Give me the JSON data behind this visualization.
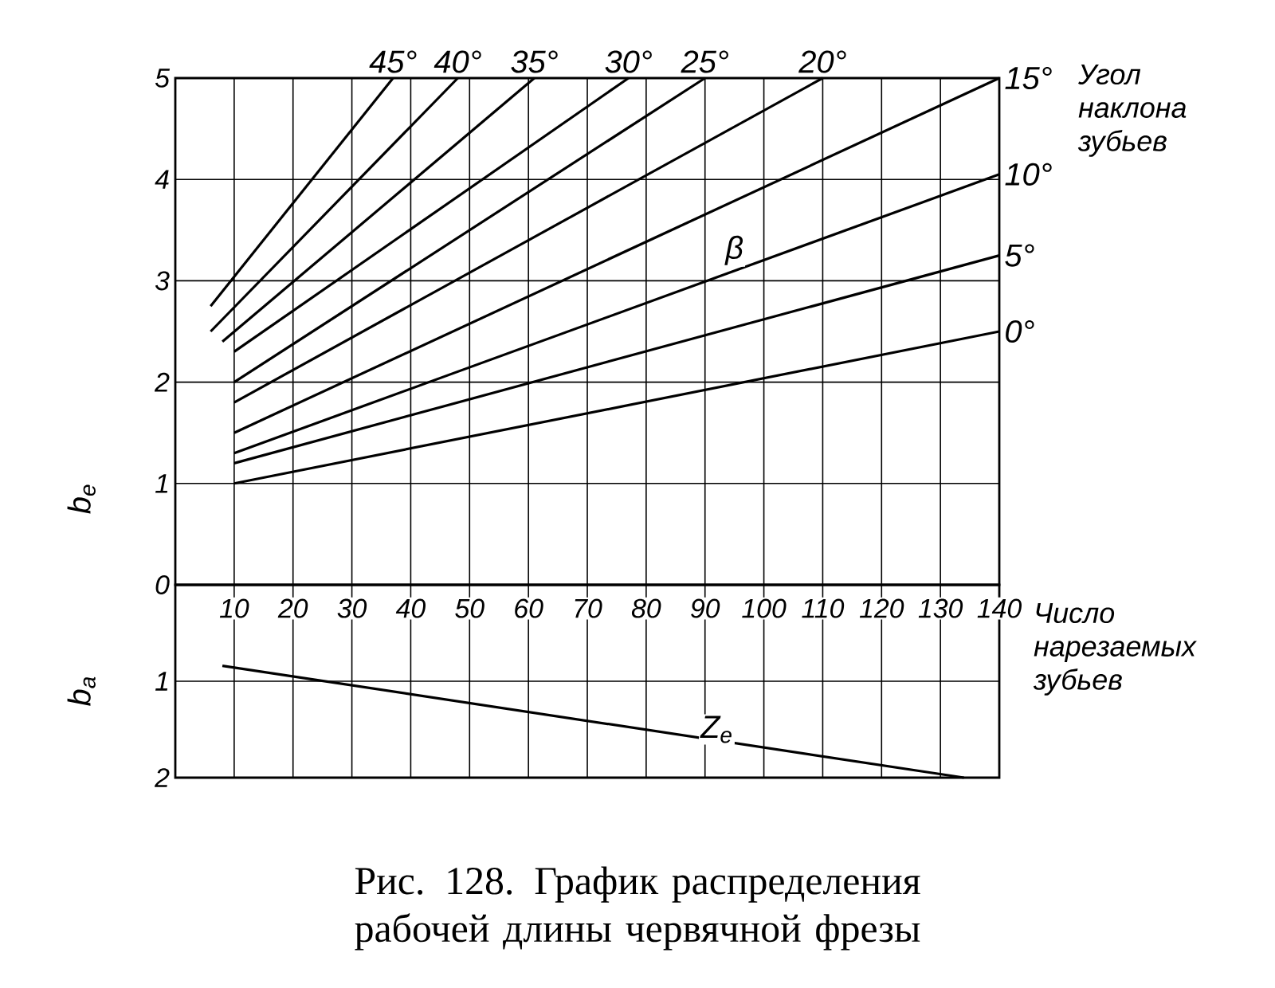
{
  "chart_data": [
    {
      "type": "line",
      "title": "Рис. 128. График распределения рабочей длины червячной фрезы",
      "ylabel": "b$_{e}$",
      "xlim": [
        0,
        140
      ],
      "ylim": [
        0,
        5
      ],
      "xticks": [
        10,
        20,
        30,
        40,
        50,
        60,
        70,
        80,
        90,
        100,
        110,
        120,
        130,
        140
      ],
      "yticks": [
        0,
        1,
        2,
        3,
        4,
        5
      ],
      "grid": true,
      "tick_labels": "y",
      "annotations": [
        "Угол наклона зубьев",
        {
          "text": "β",
          "x": 95,
          "y": 3.3
        }
      ],
      "series": [
        {
          "name": "0°",
          "color": "#000000",
          "x": [
            10,
            140
          ],
          "values": [
            1.0,
            2.5
          ]
        },
        {
          "name": "5°",
          "color": "#000000",
          "x": [
            10,
            140
          ],
          "values": [
            1.2,
            3.25
          ]
        },
        {
          "name": "10°",
          "color": "#000000",
          "x": [
            10,
            140
          ],
          "values": [
            1.3,
            4.05
          ]
        },
        {
          "name": "15°",
          "color": "#000000",
          "x": [
            10,
            140
          ],
          "values": [
            1.5,
            5.0
          ]
        },
        {
          "name": "20°",
          "color": "#000000",
          "x": [
            10,
            110
          ],
          "values": [
            1.8,
            5.0
          ]
        },
        {
          "name": "25°",
          "color": "#000000",
          "x": [
            10,
            90
          ],
          "values": [
            2.0,
            5.0
          ]
        },
        {
          "name": "30°",
          "color": "#000000",
          "x": [
            10,
            77
          ],
          "values": [
            2.3,
            5.0
          ]
        },
        {
          "name": "35°",
          "color": "#000000",
          "x": [
            8,
            61
          ],
          "values": [
            2.4,
            5.0
          ]
        },
        {
          "name": "40°",
          "color": "#000000",
          "x": [
            6,
            48
          ],
          "values": [
            2.5,
            5.0
          ]
        },
        {
          "name": "45°",
          "color": "#000000",
          "x": [
            6,
            37
          ],
          "values": [
            2.75,
            5.0
          ]
        }
      ]
    },
    {
      "type": "line",
      "ylabel": "b$_{a}$",
      "xlabel": "Число нарезаемых зубьев",
      "xlim": [
        0,
        140
      ],
      "ylim": [
        2,
        0
      ],
      "xticks": [
        10,
        20,
        30,
        40,
        50,
        60,
        70,
        80,
        90,
        100,
        110,
        120,
        130,
        140
      ],
      "yticks": [
        {
          "value": 0,
          "label": null
        },
        1,
        2
      ],
      "grid": true,
      "annotations": [
        {
          "text": "Z$_{e}$",
          "x": 92,
          "y": 1.5
        }
      ],
      "series": [
        {
          "color": "#000000",
          "x": [
            8,
            134
          ],
          "values": [
            0.84,
            2.0
          ]
        }
      ]
    }
  ]
}
